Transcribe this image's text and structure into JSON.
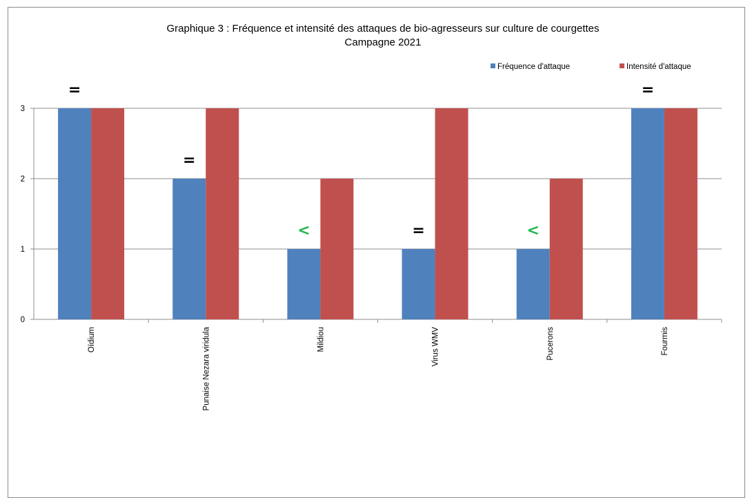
{
  "chart_data": {
    "type": "bar",
    "title": "Graphique 3 : Fréquence et intensité des attaques de bio-agresseurs sur culture de courgettes",
    "subtitle": "Campagne 2021",
    "categories": [
      "Oïdium",
      "Punaise Nezara viridula",
      "Mildiou",
      "Virus WMV",
      "Pucerons",
      "Fourmis"
    ],
    "series": [
      {
        "name": "Fréquence d'attaque",
        "color": "#4f81bd",
        "values": [
          3,
          2,
          1,
          1,
          1,
          3
        ]
      },
      {
        "name": "Intensité d'attaque",
        "color": "#c0504d",
        "values": [
          3,
          3,
          2,
          3,
          2,
          3
        ]
      }
    ],
    "trend_markers": [
      "=",
      "=",
      "<",
      "=",
      "<",
      "="
    ],
    "trend_colors": {
      "=": "#000000",
      "<": "#1fb84a"
    },
    "ylim": [
      0,
      3
    ],
    "yticks": [
      0,
      1,
      2,
      3
    ],
    "grid": true,
    "legend_position": "top-right",
    "xlabel": "",
    "ylabel": ""
  }
}
